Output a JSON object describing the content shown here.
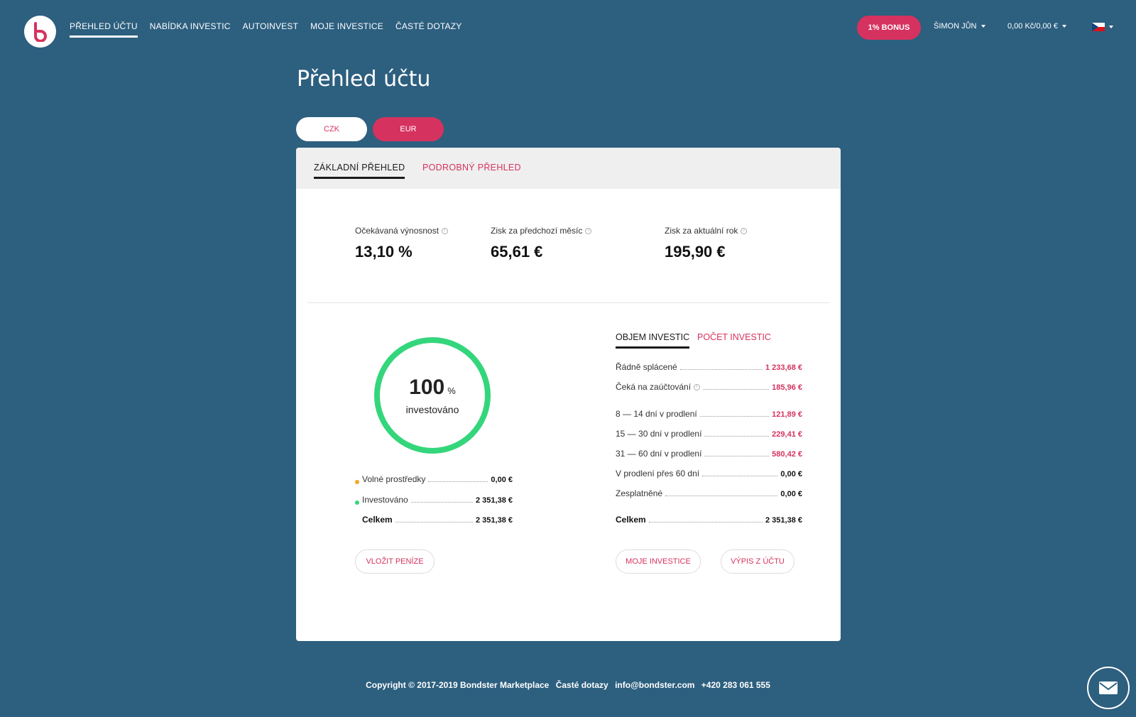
{
  "header": {
    "nav": [
      {
        "label": "PŘEHLED ÚČTU",
        "active": true
      },
      {
        "label": "NABÍDKA INVESTIC",
        "active": false
      },
      {
        "label": "AUTOINVEST",
        "active": false
      },
      {
        "label": "MOJE INVESTICE",
        "active": false
      },
      {
        "label": "ČASTÉ DOTAZY",
        "active": false
      }
    ],
    "bonus_label": "1% BONUS",
    "user_name": "ŠIMON JŮN",
    "balance": "0,00 Kč/0,00 €"
  },
  "page": {
    "title": "Přehled účtu",
    "currency_czk": "CZK",
    "currency_eur": "EUR"
  },
  "card": {
    "tabs": {
      "basic": "ZÁKLADNÍ PŘEHLED",
      "detailed": "PODROBNÝ PŘEHLED"
    },
    "stats": [
      {
        "label": "Očekávaná výnosnost",
        "value": "13,10 %"
      },
      {
        "label": "Zisk za předchozí měsíc",
        "value": "65,61 €"
      },
      {
        "label": "Zisk za aktuální rok",
        "value": "195,90 €"
      }
    ],
    "donut": {
      "percent": "100",
      "percent_sign": "%",
      "caption": "investováno",
      "fill": 1.0
    },
    "left_rows": {
      "free_label": "Volné prostředky",
      "free_value": "0,00 €",
      "invested_label": "Investováno",
      "invested_value": "2 351,38 €",
      "total_label": "Celkem",
      "total_value": "2 351,38 €"
    },
    "deposit_button": "VLOŽIT PENÍZE",
    "right_tabs": {
      "volume": "OBJEM INVESTIC",
      "count": "POČET INVESTIC"
    },
    "right_rows": [
      {
        "label": "Řádně splácené",
        "value": "1 233,68 €",
        "pink": true
      },
      {
        "label": "Čeká na zaúčtování",
        "value": "185,96 €",
        "pink": true
      },
      {
        "label": "8 — 14 dní v prodlení",
        "value": "121,89 €",
        "pink": true
      },
      {
        "label": "15 — 30 dní v prodlení",
        "value": "229,41 €",
        "pink": true
      },
      {
        "label": "31 — 60 dní v prodlení",
        "value": "580,42 €",
        "pink": true
      },
      {
        "label": "V prodlení přes 60 dní",
        "value": "0,00 €",
        "pink": false
      },
      {
        "label": "Zesplatněné",
        "value": "0,00 €",
        "pink": false
      }
    ],
    "right_total_label": "Celkem",
    "right_total_value": "2 351,38 €",
    "my_investments_button": "MOJE INVESTICE",
    "statement_button": "VÝPIS Z ÚČTU"
  },
  "footer": {
    "copyright": "Copyright © 2017-2019 Bondster Marketplace",
    "faq": "Časté dotazy",
    "email": "info@bondster.com",
    "phone": "+420 283 061 555"
  },
  "colors": {
    "background": "#2d5f7f",
    "accent": "#d6325f",
    "green": "#34d67c",
    "orange": "#f5a623"
  }
}
